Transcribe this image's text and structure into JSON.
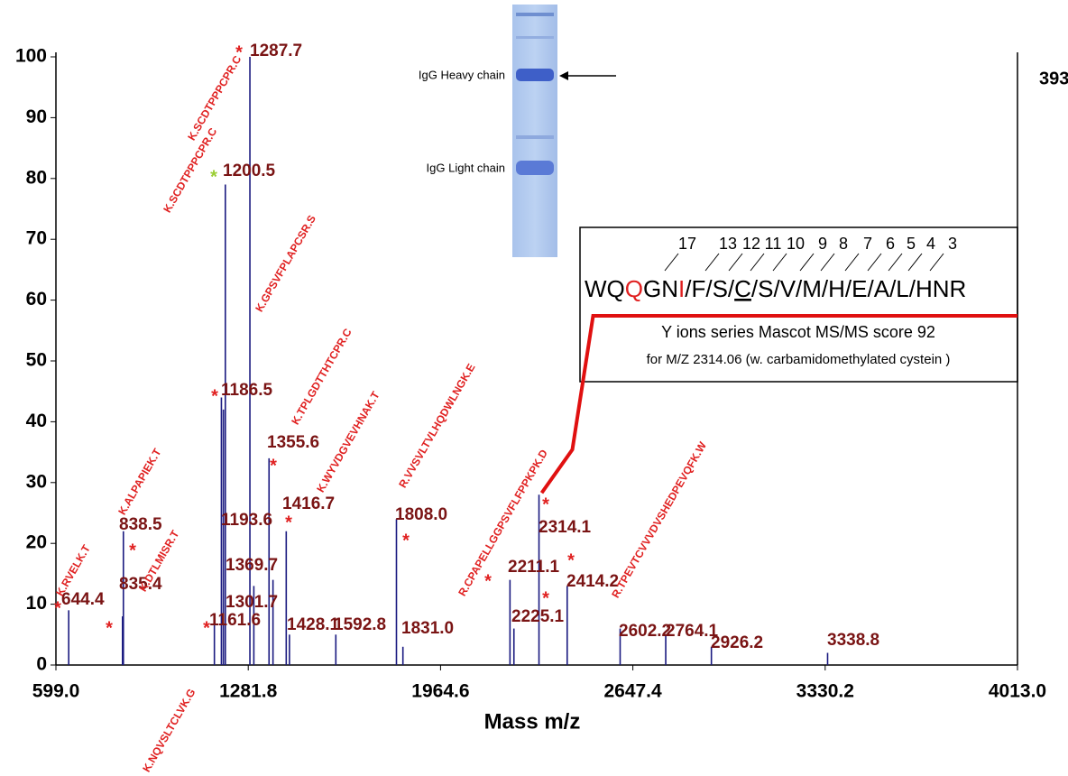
{
  "chart_data": {
    "type": "spectrum",
    "x_label": "Mass m/z",
    "right_label": "393",
    "xlim": [
      599,
      4013
    ],
    "xticks": [
      {
        "value": 599,
        "label": "599.0"
      },
      1281.8,
      1964.6,
      2647.4,
      3330.2,
      {
        "value": 4013,
        "label": "4013.0"
      }
    ],
    "ylim": [
      0,
      100
    ],
    "yticks": [
      0,
      10,
      20,
      30,
      40,
      50,
      60,
      70,
      80,
      90,
      100
    ],
    "color": "#1a1a80",
    "label_color": "#7a1414",
    "peptide_color": "#e02020",
    "marker": "*",
    "x": [
      644.4,
      835.4,
      838.5,
      1161.6,
      1186.5,
      1193.6,
      1200.5,
      1287.7,
      1301.7,
      1355.6,
      1369.7,
      1416.7,
      1428.1,
      1592.8,
      1808.0,
      1831.0,
      2211.1,
      2225.1,
      2314.1,
      2414.2,
      2602.2,
      2764.1,
      2926.2,
      3338.8
    ],
    "x_labels": [
      "644.4",
      "835.4",
      "838.5",
      "1161.6",
      "1186.5",
      "1193.6",
      "1200.5",
      "1287.7",
      "1301.7",
      "1355.6",
      "1369.7",
      "1416.7",
      "1428.1",
      "1592.8",
      "1808.0",
      "1831.0",
      "2211.1",
      "2225.1",
      "2314.1",
      "2414.2",
      "2602.2",
      "2764.1",
      "2926.2",
      "3338.8"
    ],
    "values": [
      9,
      8,
      22,
      7,
      44,
      42,
      79,
      100,
      13,
      34,
      14,
      22,
      5,
      5,
      24,
      3,
      14,
      6,
      28,
      13,
      6,
      5,
      3,
      2
    ],
    "peptides": [
      "K.RVELK.T",
      "K.DTLMISR.T",
      "K.ALPAPIEK.T",
      "K.NQVSLTCLVK.G",
      "K.SCDTPPPCPR.C",
      null,
      "K.SCDTPPPCPR.C",
      "K.GPSVFPLAPCSR.S",
      null,
      "K.TPLGDTTHTCPR.C",
      null,
      "K.WYVDGVEVHNAK.T",
      null,
      null,
      "R.VVSVLTVLHQDWLNGK.E",
      null,
      "R.CPAPELLGGPSVFLFPPKPK.D",
      null,
      null,
      "R.TPEVTCVVVDVSHEDPEVQFK.W",
      null,
      null,
      null,
      null
    ],
    "marker_colors": [
      "#e02020",
      "#e02020",
      "#e02020",
      "#e02020",
      "#e02020",
      null,
      "#9acd32",
      "#e02020",
      null,
      "#e02020",
      null,
      "#e02020",
      null,
      null,
      "#e02020",
      null,
      "#e02020",
      "#e02020",
      "#e02020",
      "#e02020",
      null,
      null,
      null,
      null
    ]
  },
  "gel": {
    "bands": [
      "IgG Heavy chain",
      "IgG Light chain"
    ]
  },
  "sequence_box": {
    "ion_numbers": [
      17,
      13,
      12,
      11,
      10,
      9,
      8,
      7,
      6,
      5,
      4,
      3
    ],
    "sequence": [
      {
        "text": "WQ"
      },
      {
        "text": "Q",
        "color": "#e02020"
      },
      {
        "text": "GN"
      },
      {
        "text": "I",
        "color": "#e02020"
      },
      {
        "text": "/F/S/"
      },
      {
        "text": "C",
        "underline": true
      },
      {
        "text": "/S/V/M/H/E/A/L/HNR"
      }
    ],
    "caption": "Y ions series Mascot MS/MS score 92",
    "note": "for M/Z 2314.06 (w. carbamidomethylated cystein )"
  }
}
